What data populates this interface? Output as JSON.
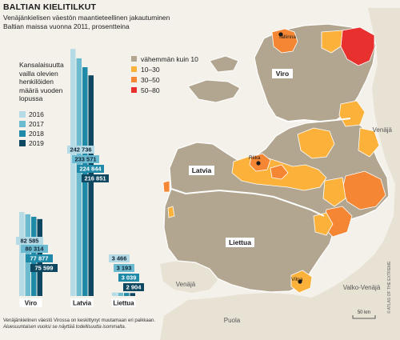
{
  "header": {
    "title": "BALTIAN KIELITILKUT",
    "subtitle_lines": [
      "Venäjänkielisen väestön maantieteellinen jakautuminen",
      "Baltian maissa vuonna 2011, prosentteina"
    ]
  },
  "bar_chart_label_lines": [
    "Kansalaisuutta",
    "vailla olevien",
    "henkilöiden",
    "määrä vuoden",
    "lopussa"
  ],
  "chart_data": {
    "type": "bar",
    "categories": [
      "Viro",
      "Latvia",
      "Liettua"
    ],
    "series": [
      {
        "name": "2016",
        "values": [
          82585,
          242736,
          3466
        ]
      },
      {
        "name": "2017",
        "values": [
          80314,
          233571,
          3193
        ]
      },
      {
        "name": "2018",
        "values": [
          77877,
          224844,
          3039
        ]
      },
      {
        "name": "2019",
        "values": [
          75599,
          216851,
          2904
        ]
      }
    ],
    "value_labels": [
      [
        "82 585",
        "80 314",
        "77 877",
        "75 599"
      ],
      [
        "242 736",
        "233 571",
        "224 844",
        "216 851"
      ],
      [
        "3 466",
        "3 193",
        "3 039",
        "2 904"
      ]
    ],
    "colors": [
      "#b5dbe6",
      "#6bbacf",
      "#1f8aa8",
      "#0e4860"
    ]
  },
  "map_legend": [
    {
      "label": "vähemmän kuin 10",
      "color": "#b3a690"
    },
    {
      "label": "10–30",
      "color": "#fcb23a"
    },
    {
      "label": "30–50",
      "color": "#f58634"
    },
    {
      "label": "50–80",
      "color": "#e8302e"
    }
  ],
  "map_labels": {
    "countries": [
      "Viro",
      "Latvia",
      "Liettua"
    ],
    "cities": [
      "Tallinna",
      "Riika",
      "Vilna"
    ],
    "neighbors": [
      "Venäjä",
      "Venäjä",
      "Valko-Venäjä",
      "Puola"
    ],
    "scale": "50 km"
  },
  "footnote_lines": [
    "Venäjänkielinen väestö Virossa on keskittynyt muutamaan eri paikkaan.",
    "Aluesuuntaisen vuoksi se näyttää todellisuutta isommalta."
  ],
  "credit": "© ATLAS OF THE EXTREME"
}
